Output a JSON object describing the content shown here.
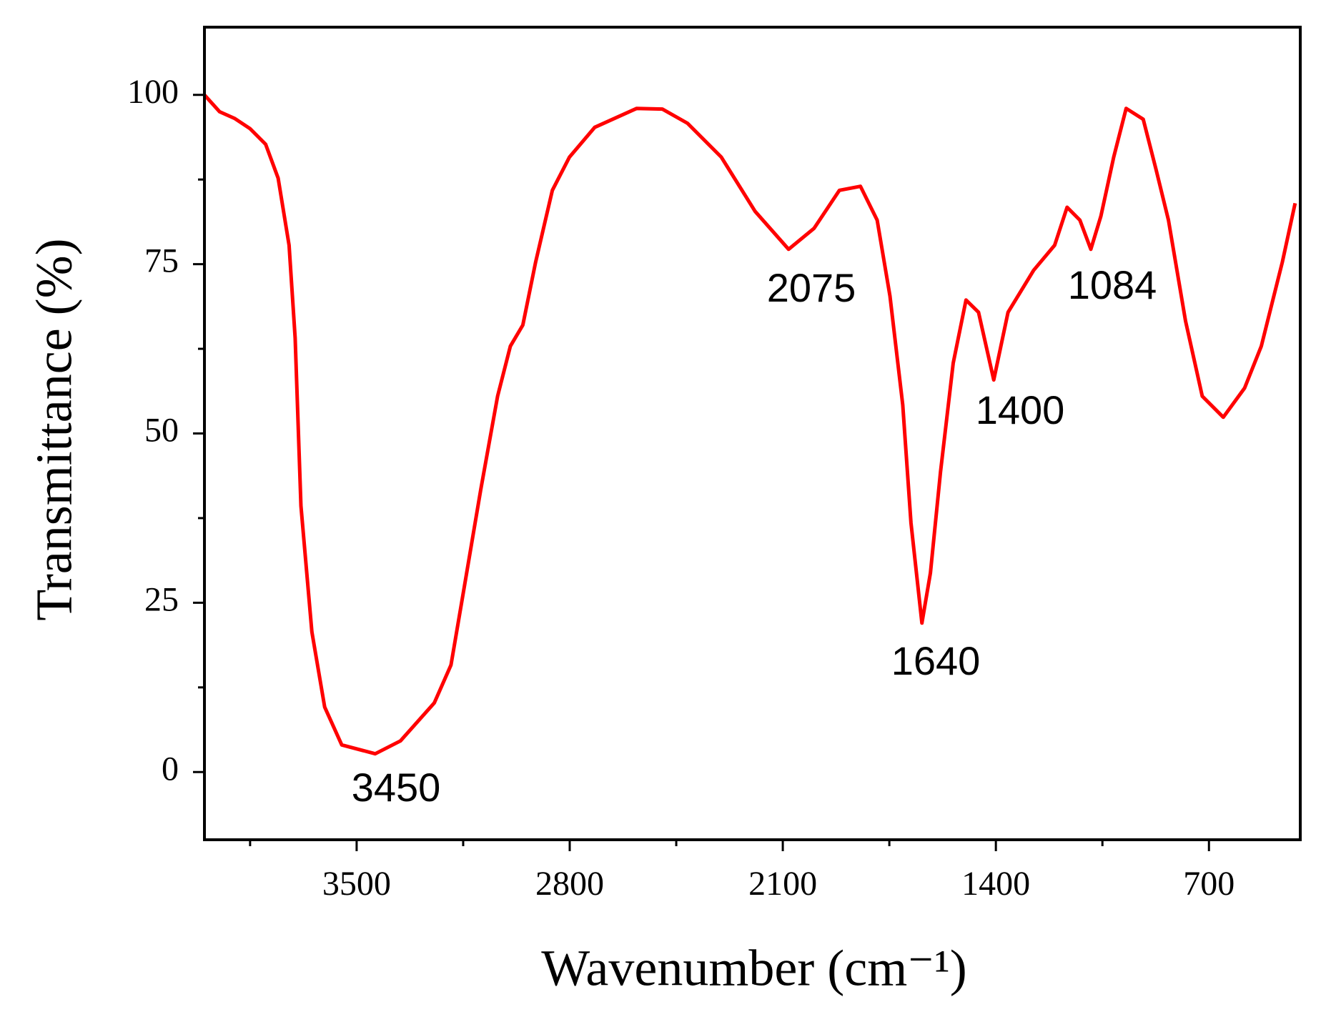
{
  "chart_data": {
    "type": "line",
    "xlabel": "Wavenumber (cm⁻¹)",
    "ylabel": "Transmittance (%)",
    "xlim": [
      4000,
      400
    ],
    "xticks": [
      3500,
      2800,
      2100,
      1400,
      700
    ],
    "xminorticks": [
      3850,
      3150,
      2450,
      1750,
      1050
    ],
    "ylim": [
      -10,
      110
    ],
    "yticks": [
      0,
      25,
      50,
      75,
      100
    ],
    "yminorticks": [
      12.5,
      37.5,
      62.5,
      87.5
    ],
    "series": [
      {
        "color": "#ff0000",
        "x": [
          4000,
          3950,
          3900,
          3850,
          3799,
          3758,
          3722,
          3702,
          3683,
          3647,
          3605,
          3549,
          3439,
          3356,
          3245,
          3190,
          3148,
          3092,
          3037,
          2995,
          2954,
          2912,
          2857,
          2801,
          2718,
          2580,
          2496,
          2413,
          2302,
          2191,
          2081,
          1997,
          1914,
          1845,
          1790,
          1748,
          1706,
          1679,
          1643,
          1615,
          1582,
          1540,
          1498,
          1457,
          1407,
          1360,
          1276,
          1207,
          1166,
          1124,
          1088,
          1055,
          1013,
          972,
          916,
          874,
          833,
          777,
          722,
          653,
          583,
          528,
          459,
          417
        ],
        "values": [
          100,
          97.5,
          96.5,
          95,
          92.7,
          87.7,
          77.8,
          64.1,
          39.3,
          20.7,
          9.6,
          4.0,
          2.7,
          4.6,
          10.2,
          15.8,
          26.9,
          41.8,
          55.5,
          62.9,
          66.0,
          75.3,
          85.9,
          90.8,
          95.2,
          98.0,
          97.9,
          95.8,
          90.8,
          82.8,
          77.2,
          80.3,
          85.9,
          86.5,
          81.5,
          70.3,
          54.2,
          36.8,
          22.0,
          29.4,
          44.3,
          60.4,
          69.7,
          67.9,
          57.9,
          67.9,
          74.1,
          77.8,
          83.4,
          81.5,
          77.2,
          82.1,
          90.8,
          98.0,
          96.4,
          89.0,
          81.5,
          66.6,
          55.5,
          52.4,
          56.7,
          62.9,
          75.3,
          84.0
        ]
      }
    ],
    "annotations": [
      "3450",
      "2075",
      "1640",
      "1400",
      "1084"
    ]
  }
}
